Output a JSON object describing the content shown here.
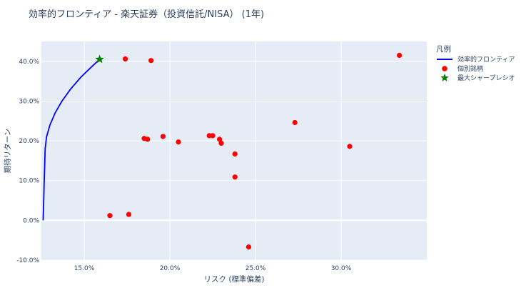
{
  "chart_data": {
    "type": "scatter",
    "title": "効率的フロンティア - 楽天証券（投資信託/NISA） (1年)",
    "xlabel": "リスク (標準偏差)",
    "ylabel": "期待リターン",
    "xlim": [
      12.5,
      35.0
    ],
    "ylim": [
      -10.0,
      45.0
    ],
    "x_ticks": [
      "15.0%",
      "20.0%",
      "25.0%",
      "30.0%"
    ],
    "x_tick_values": [
      15,
      20,
      25,
      30
    ],
    "y_ticks": [
      "-10.0%",
      "0.0%",
      "10.0%",
      "20.0%",
      "30.0%",
      "40.0%"
    ],
    "y_tick_values": [
      -10,
      0,
      10,
      20,
      30,
      40
    ],
    "grid": true,
    "legend": {
      "title": "凡例",
      "placement": "top-right",
      "entries": [
        "効率的フロンティア",
        "個別銘柄",
        "最大シャープレシオ"
      ]
    },
    "series": [
      {
        "name": "効率的フロンティア",
        "kind": "line",
        "color": "#0000ff",
        "points": [
          [
            12.6,
            0.0
          ],
          [
            12.62,
            3.0
          ],
          [
            12.64,
            6.0
          ],
          [
            12.66,
            9.0
          ],
          [
            12.68,
            12.0
          ],
          [
            12.7,
            15.0
          ],
          [
            12.72,
            18.0
          ],
          [
            12.8,
            21.0
          ],
          [
            13.0,
            24.0
          ],
          [
            13.3,
            27.0
          ],
          [
            13.7,
            30.0
          ],
          [
            14.2,
            33.0
          ],
          [
            14.8,
            36.0
          ],
          [
            15.4,
            38.5
          ],
          [
            15.9,
            40.5
          ]
        ]
      },
      {
        "name": "個別銘柄",
        "kind": "scatter",
        "color": "#ff0000",
        "points": [
          [
            17.4,
            40.6
          ],
          [
            18.9,
            40.2
          ],
          [
            18.5,
            20.6
          ],
          [
            18.7,
            20.4
          ],
          [
            19.6,
            21.1
          ],
          [
            20.5,
            19.7
          ],
          [
            22.3,
            21.3
          ],
          [
            22.5,
            21.3
          ],
          [
            22.9,
            20.4
          ],
          [
            23.0,
            19.4
          ],
          [
            23.8,
            16.7
          ],
          [
            23.8,
            10.9
          ],
          [
            16.5,
            1.2
          ],
          [
            17.6,
            1.5
          ],
          [
            24.6,
            -6.7
          ],
          [
            27.3,
            24.6
          ],
          [
            30.5,
            18.6
          ],
          [
            33.4,
            41.5
          ]
        ]
      },
      {
        "name": "最大シャープレシオ",
        "kind": "marker-star",
        "color": "#008000",
        "points": [
          [
            15.9,
            40.5
          ]
        ]
      }
    ]
  }
}
